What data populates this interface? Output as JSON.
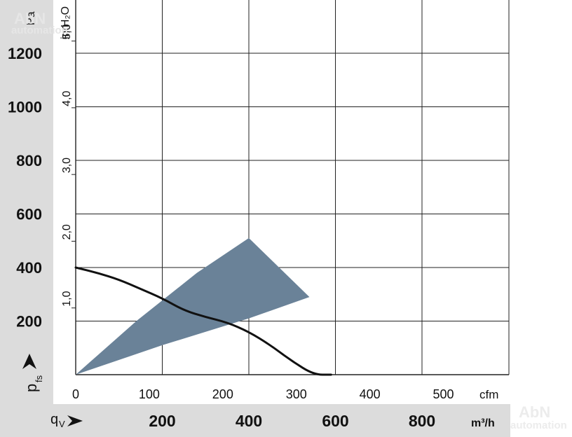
{
  "chart_data": {
    "type": "line",
    "y_unit_primary": "Pa",
    "y_unit_secondary": "in H₂O",
    "y_symbol": "p",
    "y_symbol_sub": "fs",
    "x_unit_primary": "cfm",
    "x_unit_secondary": "m³/h",
    "x_symbol": "q",
    "x_symbol_sub": "V",
    "y_ticks_pa": [
      "200",
      "400",
      "600",
      "800",
      "1000",
      "1200"
    ],
    "y_ticks_inh2o": [
      "1,0",
      "2,0",
      "3,0",
      "4,0",
      "5,0"
    ],
    "x_ticks_cfm": [
      "0",
      "100",
      "200",
      "300",
      "400",
      "500"
    ],
    "x_ticks_m3h": [
      "200",
      "400",
      "600",
      "800"
    ],
    "xlim_m3h": [
      0,
      1000
    ],
    "ylim_pa": [
      0,
      1400
    ],
    "grid": true,
    "series": [
      {
        "x": [
          0,
          50,
          100,
          150,
          200,
          250,
          300,
          350,
          400,
          450,
          500,
          550,
          590
        ],
        "y": [
          400,
          380,
          355,
          320,
          285,
          240,
          215,
          195,
          160,
          110,
          50,
          0,
          0
        ],
        "color": "#111111"
      }
    ],
    "operating_range": {
      "color": "#6a8298",
      "points": [
        [
          0,
          0
        ],
        [
          200,
          110
        ],
        [
          400,
          210
        ],
        [
          540,
          290
        ],
        [
          400,
          510
        ],
        [
          280,
          380
        ],
        [
          140,
          200
        ],
        [
          0,
          0
        ]
      ]
    }
  },
  "watermark": {
    "text_top": "AbN",
    "text_bottom": "automation"
  }
}
